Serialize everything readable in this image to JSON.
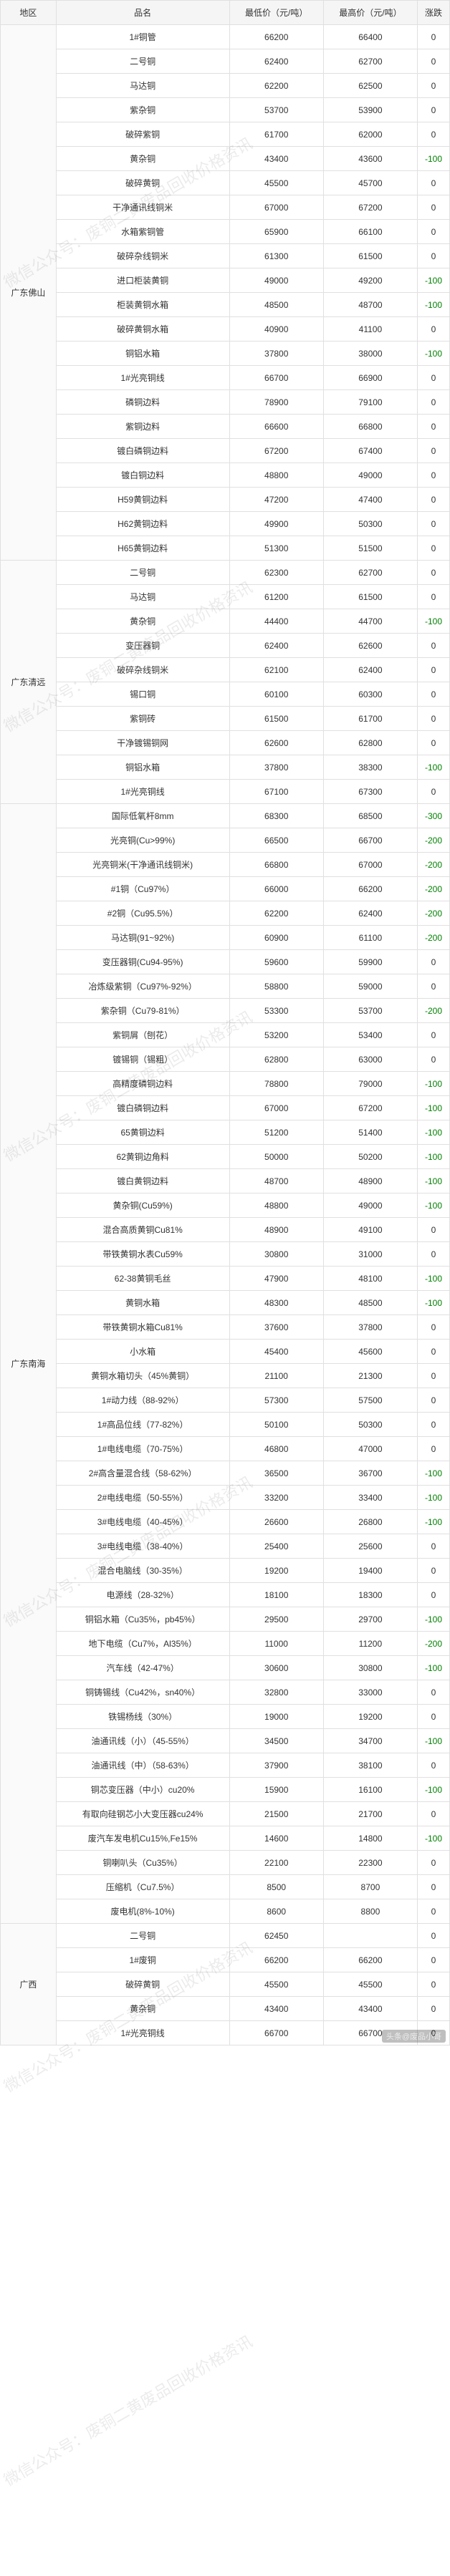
{
  "watermark_text": "微信公众号：废铜二黄废品回收价格资讯",
  "bottom_tag": "头条@废品小哥",
  "columns": [
    "地区",
    "品名",
    "最低价（元/吨）",
    "最高价（元/吨）",
    "涨跌"
  ],
  "regions": [
    {
      "name": "广东佛山",
      "rows": [
        {
          "name": "1#铜管",
          "low": 66200,
          "high": 66400,
          "chg": 0
        },
        {
          "name": "二号铜",
          "low": 62400,
          "high": 62700,
          "chg": 0
        },
        {
          "name": "马达铜",
          "low": 62200,
          "high": 62500,
          "chg": 0
        },
        {
          "name": "紫杂铜",
          "low": 53700,
          "high": 53900,
          "chg": 0
        },
        {
          "name": "破碎紫铜",
          "low": 61700,
          "high": 62000,
          "chg": 0
        },
        {
          "name": "黄杂铜",
          "low": 43400,
          "high": 43600,
          "chg": -100
        },
        {
          "name": "破碎黄铜",
          "low": 45500,
          "high": 45700,
          "chg": 0
        },
        {
          "name": "干净通讯线铜米",
          "low": 67000,
          "high": 67200,
          "chg": 0
        },
        {
          "name": "水箱紫铜管",
          "low": 65900,
          "high": 66100,
          "chg": 0
        },
        {
          "name": "破碎杂线铜米",
          "low": 61300,
          "high": 61500,
          "chg": 0
        },
        {
          "name": "进口柜装黄铜",
          "low": 49000,
          "high": 49200,
          "chg": -100
        },
        {
          "name": "柜装黄铜水箱",
          "low": 48500,
          "high": 48700,
          "chg": -100
        },
        {
          "name": "破碎黄铜水箱",
          "low": 40900,
          "high": 41100,
          "chg": 0
        },
        {
          "name": "铜铝水箱",
          "low": 37800,
          "high": 38000,
          "chg": -100
        },
        {
          "name": "1#光亮铜线",
          "low": 66700,
          "high": 66900,
          "chg": 0
        },
        {
          "name": "磷铜边料",
          "low": 78900,
          "high": 79100,
          "chg": 0
        },
        {
          "name": "紫铜边料",
          "low": 66600,
          "high": 66800,
          "chg": 0
        },
        {
          "name": "镀白磷铜边料",
          "low": 67200,
          "high": 67400,
          "chg": 0
        },
        {
          "name": "镀白铜边料",
          "low": 48800,
          "high": 49000,
          "chg": 0
        },
        {
          "name": "H59黄铜边料",
          "low": 47200,
          "high": 47400,
          "chg": 0
        },
        {
          "name": "H62黄铜边料",
          "low": 49900,
          "high": 50300,
          "chg": 0
        },
        {
          "name": "H65黄铜边料",
          "low": 51300,
          "high": 51500,
          "chg": 0
        }
      ]
    },
    {
      "name": "广东清远",
      "rows": [
        {
          "name": "二号铜",
          "low": 62300,
          "high": 62700,
          "chg": 0
        },
        {
          "name": "马达铜",
          "low": 61200,
          "high": 61500,
          "chg": 0
        },
        {
          "name": "黄杂铜",
          "low": 44400,
          "high": 44700,
          "chg": -100
        },
        {
          "name": "变压器铜",
          "low": 62400,
          "high": 62600,
          "chg": 0
        },
        {
          "name": "破碎杂线铜米",
          "low": 62100,
          "high": 62400,
          "chg": 0
        },
        {
          "name": "锡口铜",
          "low": 60100,
          "high": 60300,
          "chg": 0
        },
        {
          "name": "紫铜砖",
          "low": 61500,
          "high": 61700,
          "chg": 0
        },
        {
          "name": "干净镀锡铜网",
          "low": 62600,
          "high": 62800,
          "chg": 0
        },
        {
          "name": "铜铝水箱",
          "low": 37800,
          "high": 38300,
          "chg": -100
        },
        {
          "name": "1#光亮铜线",
          "low": 67100,
          "high": 67300,
          "chg": 0
        }
      ]
    },
    {
      "name": "广东南海",
      "rows": [
        {
          "name": "国际低氧杆8mm",
          "low": 68300,
          "high": 68500,
          "chg": -300
        },
        {
          "name": "光亮铜(Cu>99%)",
          "low": 66500,
          "high": 66700,
          "chg": -200
        },
        {
          "name": "光亮铜米(干净通讯线铜米)",
          "low": 66800,
          "high": 67000,
          "chg": -200
        },
        {
          "name": "#1铜（Cu97%）",
          "low": 66000,
          "high": 66200,
          "chg": -200
        },
        {
          "name": "#2铜（Cu95.5%）",
          "low": 62200,
          "high": 62400,
          "chg": -200
        },
        {
          "name": "马达铜(91~92%)",
          "low": 60900,
          "high": 61100,
          "chg": -200
        },
        {
          "name": "变压器铜(Cu94-95%)",
          "low": 59600,
          "high": 59900,
          "chg": 0
        },
        {
          "name": "冶炼级紫铜（Cu97%-92%）",
          "low": 58800,
          "high": 59000,
          "chg": 0
        },
        {
          "name": "紫杂铜（Cu79-81%）",
          "low": 53300,
          "high": 53700,
          "chg": -200
        },
        {
          "name": "紫铜屑（刨花）",
          "low": 53200,
          "high": 53400,
          "chg": 0
        },
        {
          "name": "镀锡铜（锡粗）",
          "low": 62800,
          "high": 63000,
          "chg": 0
        },
        {
          "name": "高精度磷铜边料",
          "low": 78800,
          "high": 79000,
          "chg": -100
        },
        {
          "name": "镀白磷铜边料",
          "low": 67000,
          "high": 67200,
          "chg": -100
        },
        {
          "name": "65黄铜边料",
          "low": 51200,
          "high": 51400,
          "chg": -100
        },
        {
          "name": "62黄铜边角料",
          "low": 50000,
          "high": 50200,
          "chg": -100
        },
        {
          "name": "镀白黄铜边料",
          "low": 48700,
          "high": 48900,
          "chg": -100
        },
        {
          "name": "黄杂铜(Cu59%)",
          "low": 48800,
          "high": 49000,
          "chg": -100
        },
        {
          "name": "混合高质黄铜Cu81%",
          "low": 48900,
          "high": 49100,
          "chg": 0
        },
        {
          "name": "带铁黄铜水表Cu59%",
          "low": 30800,
          "high": 31000,
          "chg": 0
        },
        {
          "name": "62-38黄铜毛丝",
          "low": 47900,
          "high": 48100,
          "chg": -100
        },
        {
          "name": "黄铜水箱",
          "low": 48300,
          "high": 48500,
          "chg": -100
        },
        {
          "name": "带铁黄铜水箱Cu81%",
          "low": 37600,
          "high": 37800,
          "chg": 0
        },
        {
          "name": "小水箱",
          "low": 45400,
          "high": 45600,
          "chg": 0
        },
        {
          "name": "黄铜水箱切头（45%黄铜）",
          "low": 21100,
          "high": 21300,
          "chg": 0
        },
        {
          "name": "1#动力线（88-92%）",
          "low": 57300,
          "high": 57500,
          "chg": 0
        },
        {
          "name": "1#高品位线（77-82%）",
          "low": 50100,
          "high": 50300,
          "chg": 0
        },
        {
          "name": "1#电线电缆（70-75%）",
          "low": 46800,
          "high": 47000,
          "chg": 0
        },
        {
          "name": "2#高含量混合线（58-62%）",
          "low": 36500,
          "high": 36700,
          "chg": -100
        },
        {
          "name": "2#电线电缆（50-55%）",
          "low": 33200,
          "high": 33400,
          "chg": -100
        },
        {
          "name": "3#电线电缆（40-45%）",
          "low": 26600,
          "high": 26800,
          "chg": -100
        },
        {
          "name": "3#电线电缆（38-40%）",
          "low": 25400,
          "high": 25600,
          "chg": 0
        },
        {
          "name": "混合电脑线（30-35%）",
          "low": 19200,
          "high": 19400,
          "chg": 0
        },
        {
          "name": "电源线（28-32%）",
          "low": 18100,
          "high": 18300,
          "chg": 0
        },
        {
          "name": "铜铝水箱（Cu35%，pb45%）",
          "low": 29500,
          "high": 29700,
          "chg": -100
        },
        {
          "name": "地下电缆（Cu7%，Al35%）",
          "low": 11000,
          "high": 11200,
          "chg": -200
        },
        {
          "name": "汽车线（42-47%）",
          "low": 30600,
          "high": 30800,
          "chg": -100
        },
        {
          "name": "铜铸锡线（Cu42%，sn40%）",
          "low": 32800,
          "high": 33000,
          "chg": 0
        },
        {
          "name": "铁锡杨线（30%）",
          "low": 19000,
          "high": 19200,
          "chg": 0
        },
        {
          "name": "油通讯线（小）（45-55%）",
          "low": 34500,
          "high": 34700,
          "chg": -100
        },
        {
          "name": "油通讯线（中）（58-63%）",
          "low": 37900,
          "high": 38100,
          "chg": 0
        },
        {
          "name": "铜芯变压器（中小）cu20%",
          "low": 15900,
          "high": 16100,
          "chg": -100
        },
        {
          "name": "有取向硅钢芯小大变压器cu24%",
          "low": 21500,
          "high": 21700,
          "chg": 0
        },
        {
          "name": "废汽车发电机Cu15%,Fe15%",
          "low": 14600,
          "high": 14800,
          "chg": -100
        },
        {
          "name": "铜喇叭头（Cu35%）",
          "low": 22100,
          "high": 22300,
          "chg": 0
        },
        {
          "name": "压缩机（Cu7.5%）",
          "low": 8500,
          "high": 8700,
          "chg": 0
        },
        {
          "name": "废电机(8%-10%)",
          "low": 8600,
          "high": 8800,
          "chg": 0
        }
      ]
    },
    {
      "name": "广西",
      "rows": [
        {
          "name": "二号铜",
          "low": 62450,
          "high": "",
          "chg": 0
        },
        {
          "name": "1#废铜",
          "low": 66200,
          "high": 66200,
          "chg": 0
        },
        {
          "name": "破碎黄铜",
          "low": 45500,
          "high": 45500,
          "chg": 0
        },
        {
          "name": "黄杂铜",
          "low": 43400,
          "high": 43400,
          "chg": 0
        },
        {
          "name": "1#光亮铜线",
          "low": 66700,
          "high": 66700,
          "chg": 0
        }
      ]
    }
  ]
}
